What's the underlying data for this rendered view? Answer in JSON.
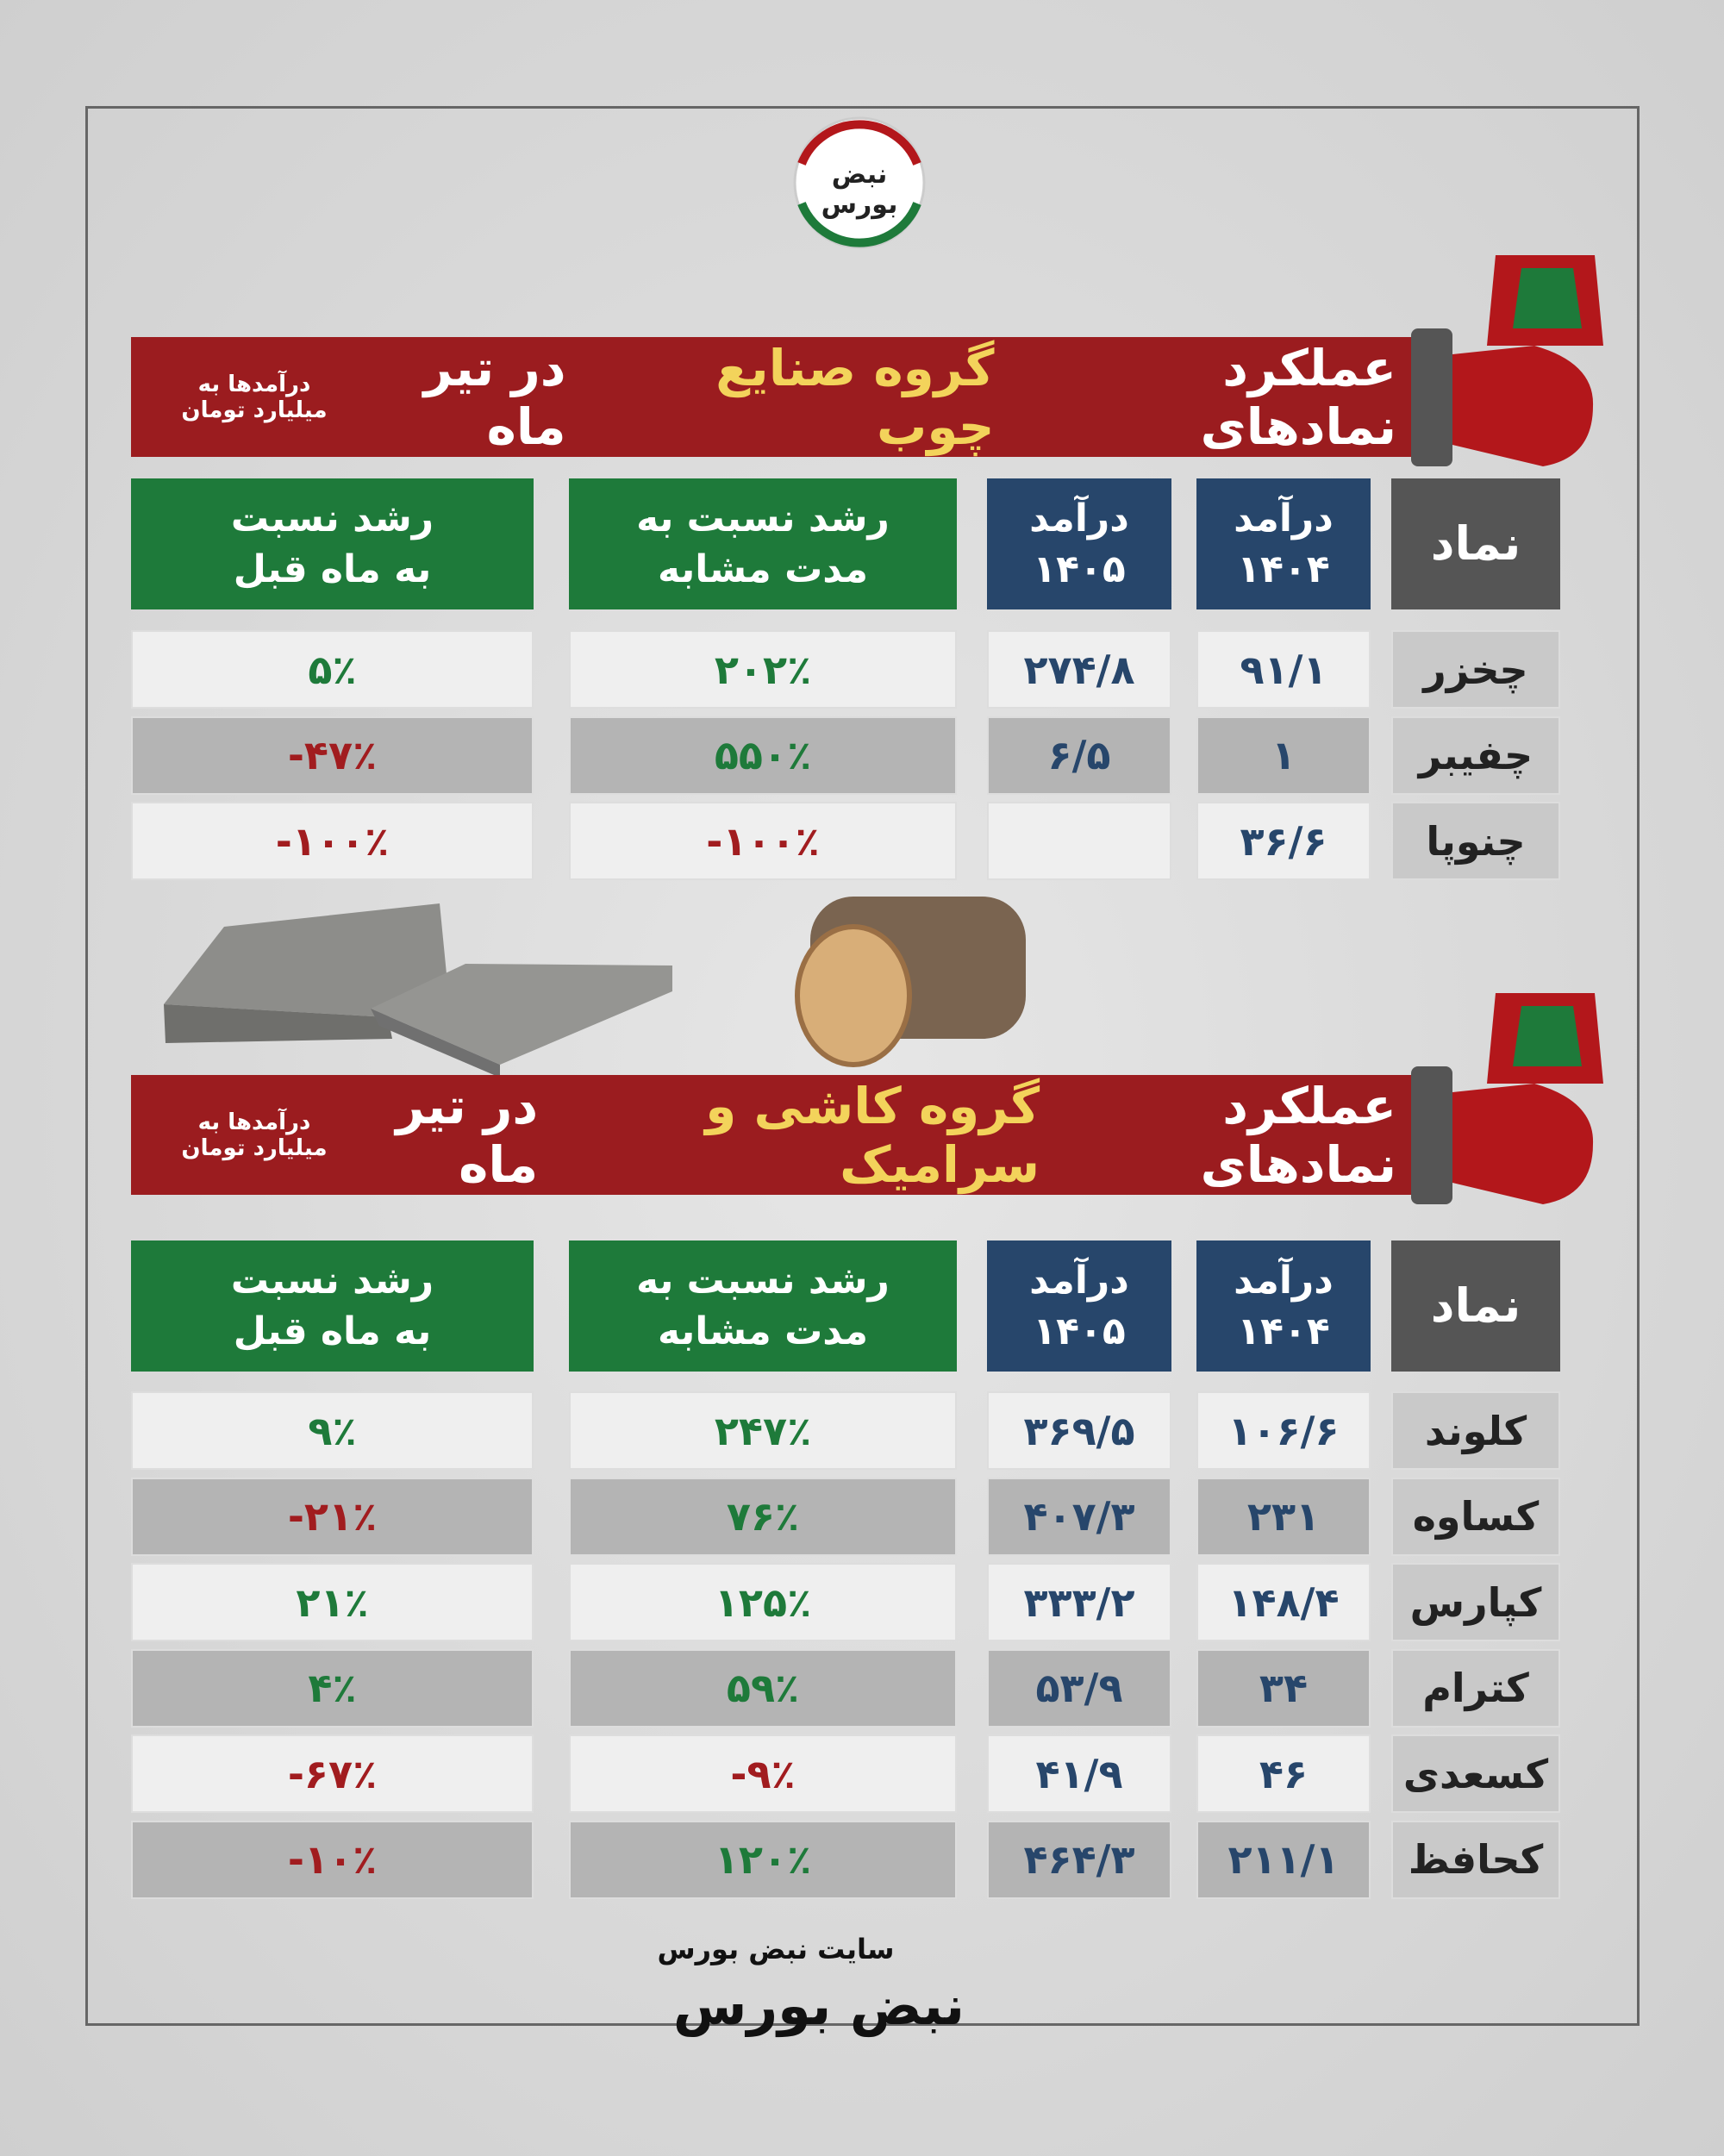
{
  "logo": "نبض بورس",
  "sections": [
    {
      "title": [
        "عملکرد نمادهای",
        "گروه صنایع چوب",
        "در تیر ماه"
      ],
      "note": [
        "درآمدها به",
        "میلیارد تومان"
      ],
      "columns": [
        [
          "نماد"
        ],
        [
          "درآمد",
          "۱۴۰۴"
        ],
        [
          "درآمد",
          "۱۴۰۵"
        ],
        [
          "رشد نسبت به",
          "مدت مشابه"
        ],
        [
          "رشد نسبت",
          "به ماه قبل"
        ]
      ],
      "rows": [
        [
          "چخزر",
          "۹۱/۱",
          "۲۷۴/۸",
          "۲۰۲٪",
          "۵٪"
        ],
        [
          "چفیبر",
          "۱",
          "۶/۵",
          "۵۵۰٪",
          "-۴۷٪"
        ],
        [
          "چنوپا",
          "۳۶/۶",
          null,
          "-۱۰۰٪",
          "-۱۰۰٪"
        ]
      ]
    },
    {
      "title": [
        "عملکرد نمادهای",
        "گروه کاشی و سرامیک",
        "در تیر ماه"
      ],
      "note": [
        "درآمدها به",
        "میلیارد تومان"
      ],
      "columns": [
        [
          "نماد"
        ],
        [
          "درآمد",
          "۱۴۰۴"
        ],
        [
          "درآمد",
          "۱۴۰۵"
        ],
        [
          "رشد نسبت به",
          "مدت مشابه"
        ],
        [
          "رشد نسبت",
          "به ماه قبل"
        ]
      ],
      "rows": [
        [
          "کلوند",
          "۱۰۶/۶",
          "۳۶۹/۵",
          "۲۴۷٪",
          "۹٪"
        ],
        [
          "کساوه",
          "۲۳۱",
          "۴۰۷/۳",
          "۷۶٪",
          "-۲۱٪"
        ],
        [
          "کپارس",
          "۱۴۸/۴",
          "۳۳۳/۲",
          "۱۲۵٪",
          "۲۱٪"
        ],
        [
          "کترام",
          "۳۴",
          "۵۳/۹",
          "۵۹٪",
          "۴٪"
        ],
        [
          "کسعدی",
          "۴۶",
          "۴۱/۹",
          "-۹٪",
          "-۶۷٪"
        ],
        [
          "کحافظ",
          "۲۱۱/۱",
          "۴۶۴/۳",
          "۱۲۰٪",
          "-۱۰٪"
        ]
      ]
    }
  ],
  "footer": {
    "site": "سایت نبض بورس",
    "brand": "نبض بورس"
  }
}
